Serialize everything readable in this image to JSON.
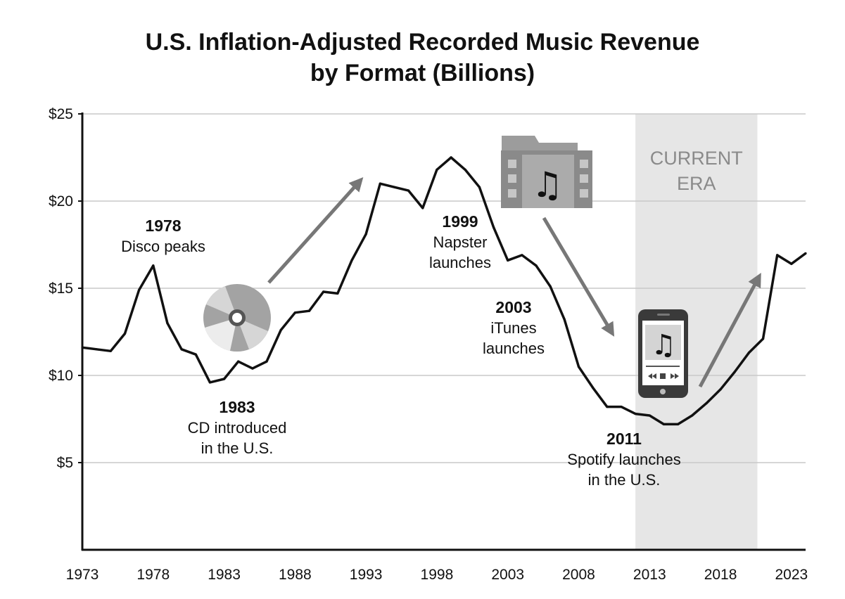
{
  "chart_data": {
    "type": "line",
    "title": [
      "U.S. Inflation-Adjusted Recorded Music Revenue",
      "by Format (Billions)"
    ],
    "xlabel": "",
    "ylabel": "",
    "xlim": [
      1973,
      2024
    ],
    "ylim": [
      0,
      25
    ],
    "y_ticks": [
      {
        "value": 5,
        "label": "$5"
      },
      {
        "value": 10,
        "label": "$10"
      },
      {
        "value": 15,
        "label": "$15"
      },
      {
        "value": 20,
        "label": "$20"
      },
      {
        "value": 25,
        "label": "$25"
      }
    ],
    "x_ticks": [
      {
        "value": 1973,
        "label": "1973"
      },
      {
        "value": 1978,
        "label": "1978"
      },
      {
        "value": 1983,
        "label": "1983"
      },
      {
        "value": 1988,
        "label": "1988"
      },
      {
        "value": 1993,
        "label": "1993"
      },
      {
        "value": 1998,
        "label": "1998"
      },
      {
        "value": 2003,
        "label": "2003"
      },
      {
        "value": 2008,
        "label": "2008"
      },
      {
        "value": 2013,
        "label": "2013"
      },
      {
        "value": 2018,
        "label": "2018"
      },
      {
        "value": 2023,
        "label": "2023"
      }
    ],
    "grid": true,
    "shaded_region": {
      "start": 2012,
      "end": 2020.6,
      "label": [
        "CURRENT",
        "ERA"
      ]
    },
    "series": [
      {
        "name": "Recorded music revenue",
        "x": [
          1973,
          1974,
          1975,
          1976,
          1977,
          1978,
          1979,
          1980,
          1981,
          1982,
          1983,
          1984,
          1985,
          1986,
          1987,
          1988,
          1989,
          1990,
          1991,
          1992,
          1993,
          1994,
          1995,
          1996,
          1997,
          1998,
          1999,
          2000,
          2001,
          2002,
          2003,
          2004,
          2005,
          2006,
          2007,
          2008,
          2009,
          2010,
          2011,
          2012,
          2013,
          2014,
          2015,
          2016,
          2017,
          2018,
          2019,
          2020,
          2021,
          2022,
          2023,
          2024
        ],
        "values": [
          11.6,
          11.5,
          11.4,
          12.4,
          14.9,
          16.3,
          13.0,
          11.5,
          11.2,
          9.6,
          9.8,
          10.8,
          10.4,
          10.8,
          12.6,
          13.6,
          13.7,
          14.8,
          14.7,
          16.6,
          18.1,
          21.0,
          20.8,
          20.6,
          19.6,
          21.8,
          22.5,
          21.8,
          20.8,
          18.5,
          16.6,
          16.9,
          16.3,
          15.1,
          13.2,
          10.5,
          9.3,
          8.2,
          8.2,
          7.8,
          7.7,
          7.2,
          7.2,
          7.7,
          8.4,
          9.2,
          10.2,
          11.3,
          12.1,
          16.9,
          16.4,
          17.0
        ]
      }
    ],
    "annotations": [
      {
        "year": "1978",
        "lines": [
          "Disco peaks"
        ]
      },
      {
        "year": "1983",
        "lines": [
          "CD introduced",
          "in the U.S."
        ]
      },
      {
        "year": "1999",
        "lines": [
          "Napster",
          "launches"
        ]
      },
      {
        "year": "2003",
        "lines": [
          "iTunes",
          "launches"
        ]
      },
      {
        "year": "2011",
        "lines": [
          "Spotify launches",
          "in the U.S."
        ]
      }
    ],
    "icons": [
      "cd-icon",
      "music-file-icon",
      "smartphone-music-icon"
    ],
    "colors": {
      "line": "#111111",
      "grid": "#c8c8c8",
      "shade": "#e6e6e6",
      "arrow": "#777777",
      "era_text": "#8a8a8a"
    }
  }
}
